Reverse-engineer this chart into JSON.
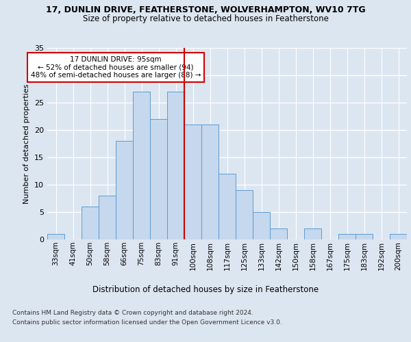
{
  "title1": "17, DUNLIN DRIVE, FEATHERSTONE, WOLVERHAMPTON, WV10 7TG",
  "title2": "Size of property relative to detached houses in Featherstone",
  "xlabel": "Distribution of detached houses by size in Featherstone",
  "ylabel": "Number of detached properties",
  "footnote1": "Contains HM Land Registry data © Crown copyright and database right 2024.",
  "footnote2": "Contains public sector information licensed under the Open Government Licence v3.0.",
  "bar_labels": [
    "33sqm",
    "41sqm",
    "50sqm",
    "58sqm",
    "66sqm",
    "75sqm",
    "83sqm",
    "91sqm",
    "100sqm",
    "108sqm",
    "117sqm",
    "125sqm",
    "133sqm",
    "142sqm",
    "150sqm",
    "158sqm",
    "167sqm",
    "175sqm",
    "183sqm",
    "192sqm",
    "200sqm"
  ],
  "bar_values": [
    1,
    0,
    6,
    8,
    18,
    27,
    22,
    27,
    21,
    21,
    12,
    9,
    5,
    2,
    0,
    2,
    0,
    1,
    1,
    0,
    1
  ],
  "bar_color": "#c5d8ed",
  "bar_edge_color": "#5b9bd5",
  "vline_color": "#cc0000",
  "annotation_text": "17 DUNLIN DRIVE: 95sqm\n← 52% of detached houses are smaller (94)\n48% of semi-detached houses are larger (88) →",
  "annotation_box_color": "#ffffff",
  "annotation_box_edge": "#cc0000",
  "ylim": [
    0,
    35
  ],
  "yticks": [
    0,
    5,
    10,
    15,
    20,
    25,
    30,
    35
  ],
  "bg_color": "#dce6f1",
  "grid_color": "#ffffff"
}
